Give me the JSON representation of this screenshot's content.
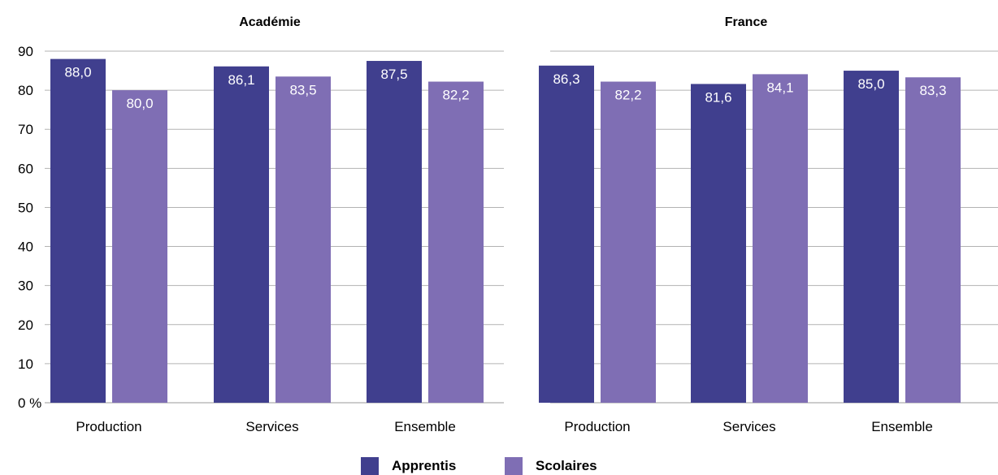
{
  "chart_data": [
    {
      "type": "bar",
      "title": "Académie",
      "categories": [
        "Production",
        "Services",
        "Ensemble"
      ],
      "series": [
        {
          "name": "Apprentis",
          "values": [
            88.0,
            86.1,
            87.5
          ],
          "labels": [
            "88,0",
            "86,1",
            "87,5"
          ]
        },
        {
          "name": "Scolaires",
          "values": [
            80.0,
            83.5,
            82.2
          ],
          "labels": [
            "80,0",
            "83,5",
            "82,2"
          ]
        }
      ],
      "ylim": [
        0,
        90
      ],
      "yticks": [
        0,
        10,
        20,
        30,
        40,
        50,
        60,
        70,
        80,
        90
      ],
      "ytick_labels": [
        "0 %",
        "10",
        "20",
        "30",
        "40",
        "50",
        "60",
        "70",
        "80",
        "90"
      ],
      "grid": true
    },
    {
      "type": "bar",
      "title": "France",
      "categories": [
        "Production",
        "Services",
        "Ensemble"
      ],
      "series": [
        {
          "name": "Apprentis",
          "values": [
            86.3,
            81.6,
            85.0
          ],
          "labels": [
            "86,3",
            "81,6",
            "85,0"
          ]
        },
        {
          "name": "Scolaires",
          "values": [
            82.2,
            84.1,
            83.3
          ],
          "labels": [
            "82,2",
            "84,1",
            "83,3"
          ]
        }
      ],
      "ylim": [
        0,
        90
      ],
      "grid": true
    }
  ],
  "legend": {
    "placement": "bottom-center",
    "items": [
      {
        "label": "Apprentis",
        "color": "#403f8e"
      },
      {
        "label": "Scolaires",
        "color": "#7f6eb4"
      }
    ]
  },
  "colors": {
    "apprentis": "#403f8e",
    "scolaires": "#7f6eb4",
    "grid": "#b3b3b3"
  }
}
